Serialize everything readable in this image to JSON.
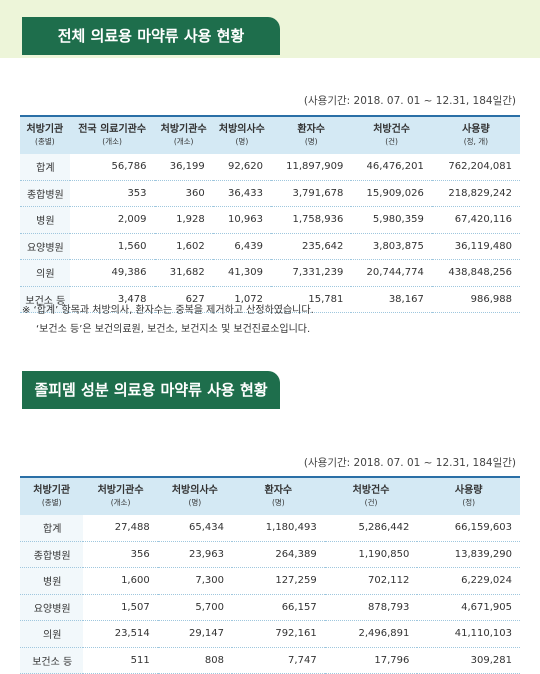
{
  "sections": [
    {
      "title": "전체 의료용 마약류 사용 현황",
      "period": "(사용기간: 2018. 07. 01 ~ 12.31, 184일간)",
      "table": {
        "columns": [
          {
            "label": "처방기관",
            "unit": "(종별)"
          },
          {
            "label": "전국 의료기관수",
            "unit": "(개소)"
          },
          {
            "label": "처방기관수",
            "unit": "(개소)"
          },
          {
            "label": "처방의사수",
            "unit": "(명)"
          },
          {
            "label": "환자수",
            "unit": "(명)"
          },
          {
            "label": "처방건수",
            "unit": "(건)"
          },
          {
            "label": "사용량",
            "unit": "(정, 개)"
          }
        ],
        "rows": [
          [
            "합계",
            "56,786",
            "36,199",
            "92,620",
            "11,897,909",
            "46,476,201",
            "762,204,081"
          ],
          [
            "종합병원",
            "353",
            "360",
            "36,433",
            "3,791,678",
            "15,909,026",
            "218,829,242"
          ],
          [
            "병원",
            "2,009",
            "1,928",
            "10,963",
            "1,758,936",
            "5,980,359",
            "67,420,116"
          ],
          [
            "요양병원",
            "1,560",
            "1,602",
            "6,439",
            "235,642",
            "3,803,875",
            "36,119,480"
          ],
          [
            "의원",
            "49,386",
            "31,682",
            "41,309",
            "7,331,239",
            "20,744,774",
            "438,848,256"
          ],
          [
            "보건소 등",
            "3,478",
            "627",
            "1,072",
            "15,781",
            "38,167",
            "986,988"
          ]
        ]
      },
      "notes": [
        "※ ‘합계’ 항목과 처방의사, 환자수는 중복을 제거하고 산정하였습니다.",
        "‘보건소 등’은 보건의료원, 보건소, 보건지소 및 보건진료소입니다."
      ]
    },
    {
      "title": "졸피뎀 성분 의료용 마약류 사용 현황",
      "period": "(사용기간: 2018. 07. 01 ~ 12.31, 184일간)",
      "table": {
        "columns": [
          {
            "label": "처방기관",
            "unit": "(종별)"
          },
          {
            "label": "처방기관수",
            "unit": "(개소)"
          },
          {
            "label": "처방의사수",
            "unit": "(명)"
          },
          {
            "label": "환자수",
            "unit": "(명)"
          },
          {
            "label": "처방건수",
            "unit": "(건)"
          },
          {
            "label": "사용량",
            "unit": "(정)"
          }
        ],
        "rows": [
          [
            "합계",
            "27,488",
            "65,434",
            "1,180,493",
            "5,286,442",
            "66,159,603"
          ],
          [
            "종합병원",
            "356",
            "23,963",
            "264,389",
            "1,190,850",
            "13,839,290"
          ],
          [
            "병원",
            "1,600",
            "7,300",
            "127,259",
            "702,112",
            "6,229,024"
          ],
          [
            "요양병원",
            "1,507",
            "5,700",
            "66,157",
            "878,793",
            "4,671,905"
          ],
          [
            "의원",
            "23,514",
            "29,147",
            "792,161",
            "2,496,891",
            "41,110,103"
          ],
          [
            "보건소 등",
            "511",
            "808",
            "7,747",
            "17,796",
            "309,281"
          ]
        ]
      }
    }
  ]
}
